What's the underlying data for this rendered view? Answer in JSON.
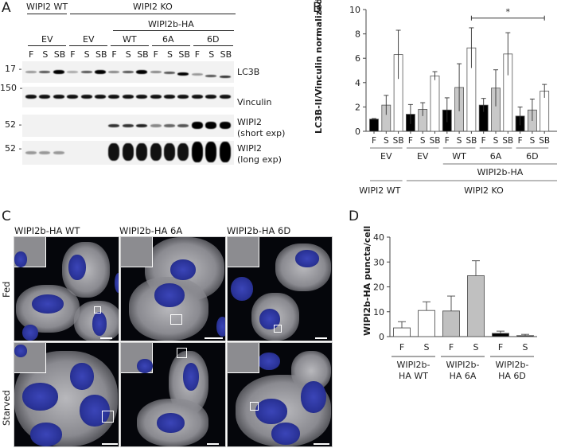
{
  "panels": {
    "A": {
      "letter": "A",
      "groups_top": [
        "WIPI2 WT",
        "WIPI2 KO"
      ],
      "subgroup": "WIPI2b-HA",
      "conditions": [
        "EV",
        "EV",
        "WT",
        "6A",
        "6D"
      ],
      "lanes": [
        "F",
        "S",
        "SB",
        "F",
        "S",
        "SB",
        "F",
        "S",
        "SB",
        "F",
        "S",
        "SB",
        "F",
        "S",
        "SB"
      ],
      "mw_markers": [
        "17 -",
        "150 -",
        "52 -",
        "52 -"
      ],
      "blots": [
        {
          "name": "LC3B",
          "label": "LC3B"
        },
        {
          "name": "Vinculin",
          "label": "Vinculin"
        },
        {
          "name": "WIPI2 short",
          "label": "WIPI2",
          "sublabel": "(short exp)"
        },
        {
          "name": "WIPI2 long",
          "label": "WIPI2",
          "sublabel": "(long exp)"
        }
      ]
    },
    "B": {
      "letter": "B",
      "ylabel": "LC3B-II/Vinculin normalized",
      "yticks": [
        "0",
        "2",
        "4",
        "6",
        "8",
        "10"
      ],
      "lanes": [
        "F",
        "S",
        "SB",
        "F",
        "S",
        "SB",
        "F",
        "S",
        "SB",
        "F",
        "S",
        "SB",
        "F",
        "S",
        "SB"
      ],
      "conditions": [
        "EV",
        "EV",
        "WT",
        "6A",
        "6D"
      ],
      "subgroup": "WIPI2b-HA",
      "groups": [
        "WIPI2 WT",
        "WIPI2 KO"
      ],
      "significance": "*"
    },
    "C": {
      "letter": "C",
      "columns": [
        "WIPI2b-HA WT",
        "WIPI2b-HA 6A",
        "WIPI2b-HA 6D"
      ],
      "rows": [
        "Fed",
        "Starved"
      ]
    },
    "D": {
      "letter": "D",
      "ylabel": "WIPI2b-HA puncta/cell",
      "yticks": [
        "0",
        "10",
        "20",
        "30",
        "40"
      ],
      "lanes": [
        "F",
        "S",
        "F",
        "S",
        "F",
        "S"
      ],
      "groups": [
        {
          "line1": "WIPI2b-",
          "line2": "HA WT"
        },
        {
          "line1": "WIPI2b-",
          "line2": "HA 6A"
        },
        {
          "line1": "WIPI2b-",
          "line2": "HA 6D"
        }
      ]
    }
  },
  "chart_data": [
    {
      "panel": "B",
      "type": "bar",
      "title": "",
      "xlabel": "",
      "ylabel": "LC3B-II/Vinculin normalized",
      "ylim": [
        0,
        10
      ],
      "categories": [
        "WT-EV F",
        "WT-EV S",
        "WT-EV SB",
        "KO-EV F",
        "KO-EV S",
        "KO-EV SB",
        "KO-WT F",
        "KO-WT S",
        "KO-WT SB",
        "KO-6A F",
        "KO-6A S",
        "KO-6A SB",
        "KO-6D F",
        "KO-6D S",
        "KO-6D SB"
      ],
      "values": [
        1.0,
        2.15,
        6.3,
        1.4,
        1.8,
        4.55,
        1.75,
        3.6,
        6.85,
        2.15,
        3.55,
        6.35,
        1.25,
        1.75,
        3.3
      ],
      "errors": [
        0.05,
        0.8,
        2.0,
        0.8,
        0.55,
        0.35,
        1.0,
        1.95,
        1.65,
        0.55,
        1.5,
        1.75,
        0.75,
        0.9,
        0.55
      ],
      "fill": [
        "#000000",
        "#c8c8c8",
        "#ffffff",
        "#000000",
        "#c8c8c8",
        "#ffffff",
        "#000000",
        "#c8c8c8",
        "#ffffff",
        "#000000",
        "#c8c8c8",
        "#ffffff",
        "#000000",
        "#c8c8c8",
        "#ffffff"
      ],
      "annotations": [
        {
          "text": "*",
          "from": "KO-WT SB",
          "to": "KO-6D SB",
          "y": 9.3
        }
      ],
      "grid": false
    },
    {
      "panel": "D",
      "type": "bar",
      "title": "",
      "xlabel": "",
      "ylabel": "WIPI2b-HA puncta/cell",
      "ylim": [
        0,
        40
      ],
      "categories": [
        "WT F",
        "WT S",
        "6A F",
        "6A S",
        "6D F",
        "6D S"
      ],
      "values": [
        3.5,
        10.5,
        10.3,
        24.5,
        1.3,
        0.4
      ],
      "errors": [
        2.5,
        3.5,
        6.0,
        6.0,
        0.9,
        0.5
      ],
      "fill": [
        "#ffffff",
        "#ffffff",
        "#c0c0c0",
        "#c0c0c0",
        "#000000",
        "#000000"
      ],
      "grid": false
    }
  ]
}
